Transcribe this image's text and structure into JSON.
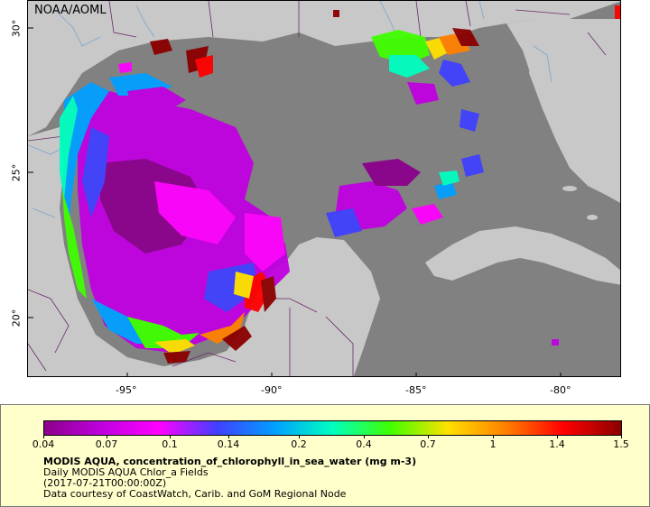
{
  "map": {
    "source_label": "NOAA/AOML",
    "longitude_labels": [
      "-95°",
      "-90°",
      "-85°",
      "-80°"
    ],
    "latitude_labels": [
      "20°",
      "25°",
      "30°"
    ],
    "colors": {
      "land": "#c8c8c8",
      "ocean": "#818181",
      "borders": "#6a2a6a",
      "rivers": "#7aa5cf"
    }
  },
  "legend": {
    "colorbar_labels": [
      "0.04",
      "0.07",
      "0.1",
      "0.14",
      "0.2",
      "0.4",
      "0.7",
      "1",
      "1.4",
      "1.5"
    ],
    "title": "MODIS AQUA, concentration_of_chlorophyll_in_sea_water (mg m-3)",
    "dataset": "Daily MODIS AQUA Chlor_a Fields",
    "time": "(2017-07-21T00:00:00Z)",
    "credit": "Data courtesy of CoastWatch, Carib. and GoM Regional Node",
    "scale_colors": [
      "#8b008b",
      "#c000e0",
      "#ff00ff",
      "#4040ff",
      "#00a0ff",
      "#00ffc0",
      "#40ff00",
      "#ffe000",
      "#ff8000",
      "#ff0000",
      "#8b0000"
    ]
  }
}
